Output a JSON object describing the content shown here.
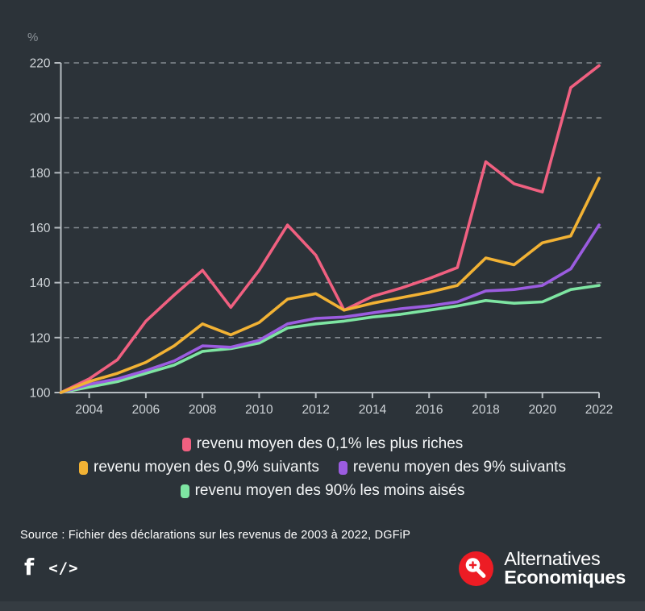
{
  "chart_data": {
    "type": "line",
    "title": "",
    "unit_label": "%",
    "x": [
      2003,
      2004,
      2005,
      2006,
      2007,
      2008,
      2009,
      2010,
      2011,
      2012,
      2013,
      2014,
      2015,
      2016,
      2017,
      2018,
      2019,
      2020,
      2021,
      2022
    ],
    "x_tick_labels": [
      "2004",
      "2006",
      "2008",
      "2010",
      "2012",
      "2014",
      "2016",
      "2018",
      "2020",
      "2022"
    ],
    "ylim": [
      100,
      220
    ],
    "y_ticks": [
      100,
      120,
      140,
      160,
      180,
      200,
      220
    ],
    "grid": "horizontal-dashed",
    "legend_position": "bottom",
    "z_order": [
      0,
      3,
      2,
      1
    ],
    "series": [
      {
        "name": "revenu moyen des 0,1% les plus riches",
        "color": "#f06080",
        "values": [
          100,
          105,
          112,
          126,
          135.5,
          144.5,
          131,
          144.5,
          161,
          150,
          130,
          135,
          138,
          141.5,
          145.5,
          184,
          176,
          173,
          211,
          219
        ]
      },
      {
        "name": "revenu moyen des 0,9% suivants",
        "color": "#f2b234",
        "values": [
          100,
          104,
          107,
          111,
          117,
          125,
          121,
          125.5,
          134,
          136,
          130,
          132.5,
          134.5,
          136.5,
          139,
          149,
          146.5,
          154.5,
          157,
          178
        ]
      },
      {
        "name": "revenu moyen des 9% suivants",
        "color": "#9b5ce0",
        "values": [
          100,
          103,
          105,
          108,
          111.5,
          117,
          116.5,
          119,
          125,
          127,
          127.5,
          129,
          130.5,
          131.5,
          133,
          137,
          137.5,
          139,
          145,
          161
        ]
      },
      {
        "name": "revenu moyen des 90% les moins aisés",
        "color": "#7ee5a2",
        "values": [
          100,
          102,
          104,
          107,
          110,
          115,
          116,
          118,
          123.5,
          125,
          126,
          127.5,
          128.5,
          130,
          131.5,
          133.5,
          132.5,
          133,
          137.5,
          139
        ]
      }
    ]
  },
  "colors": {
    "background": "#2c3339",
    "footer_strip": "#353c42",
    "grid": "#9ba2a8",
    "axis": "#b6bcc1",
    "tick_label": "#ced3d7",
    "unit_label": "#8b9298",
    "legend_text": "#f4f6f7",
    "logo_red": "#ed1c24"
  },
  "source": {
    "text": "Source : Fichier des déclarations sur les revenus de 2003 à 2022, DGFiP"
  },
  "footer": {
    "facebook_icon": "f",
    "embed_icon": "</>",
    "logo": {
      "line1": "Alternatives",
      "line2": "Economiques"
    }
  }
}
